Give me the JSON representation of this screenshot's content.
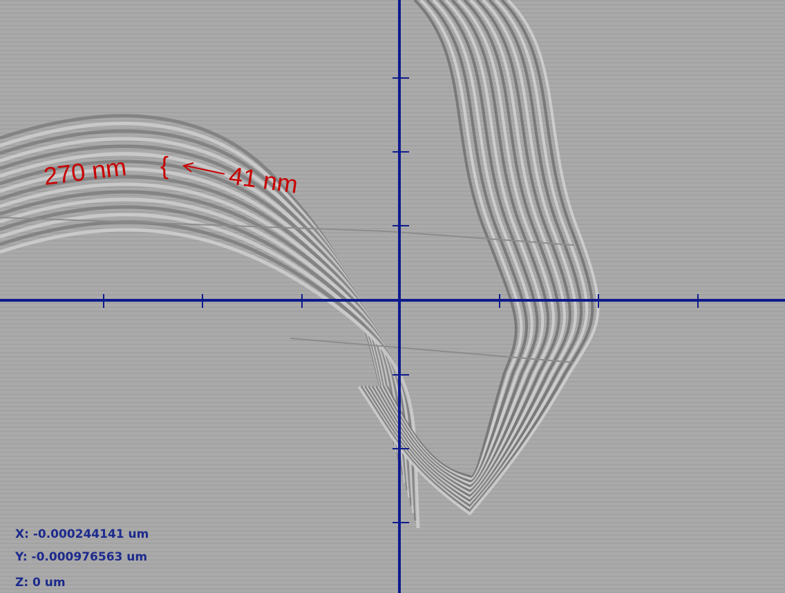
{
  "annotations": {
    "thickness": "270 nm",
    "step": "41 nm"
  },
  "readout": {
    "x": "X: -0.000244141 um",
    "y": "Y: -0.000976563 um",
    "z": "Z: 0 um"
  }
}
